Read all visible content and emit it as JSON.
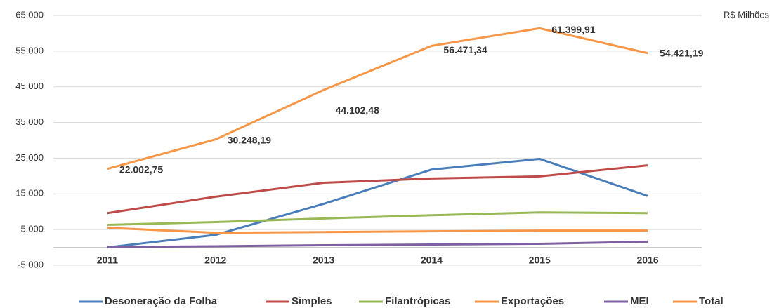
{
  "chart_data": {
    "type": "line",
    "annotation": "R$ Milhões",
    "categories": [
      "2011",
      "2012",
      "2013",
      "2014",
      "2015",
      "2016"
    ],
    "series": [
      {
        "name": "Desoneração da Folha",
        "color": "#4a7ebb",
        "values": [
          0,
          3500,
          12200,
          21800,
          24800,
          14400
        ]
      },
      {
        "name": "Simples",
        "color": "#be4b48",
        "values": [
          9600,
          14200,
          18100,
          19300,
          19900,
          23000
        ]
      },
      {
        "name": "Filantrópicas",
        "color": "#98b954",
        "values": [
          6300,
          7100,
          8100,
          9000,
          9800,
          9600
        ]
      },
      {
        "name": "Exportações",
        "color": "#f79646",
        "values": [
          5500,
          4100,
          4300,
          4500,
          4700,
          4700
        ]
      },
      {
        "name": "MEI",
        "color": "#7d60a0",
        "values": [
          100,
          300,
          600,
          800,
          1000,
          1600
        ]
      },
      {
        "name": "Total",
        "color": "#f79646",
        "values": [
          22002.75,
          30248.19,
          44102.48,
          56471.34,
          61399.91,
          54421.19
        ],
        "value_labels": [
          "22.002,75",
          "30.248,19",
          "44.102,48",
          "56.471,34",
          "61.399,91",
          "54.421,19"
        ]
      }
    ],
    "ylim": [
      -5000,
      65000
    ],
    "yticks": [
      {
        "value": -5000,
        "label": "-5.000"
      },
      {
        "value": 5000,
        "label": "5.000"
      },
      {
        "value": 15000,
        "label": "15.000"
      },
      {
        "value": 25000,
        "label": "25.000"
      },
      {
        "value": 35000,
        "label": "35.000"
      },
      {
        "value": 45000,
        "label": "45.000"
      },
      {
        "value": 55000,
        "label": "55.000"
      },
      {
        "value": 65000,
        "label": "65.000"
      }
    ],
    "grid": true
  }
}
